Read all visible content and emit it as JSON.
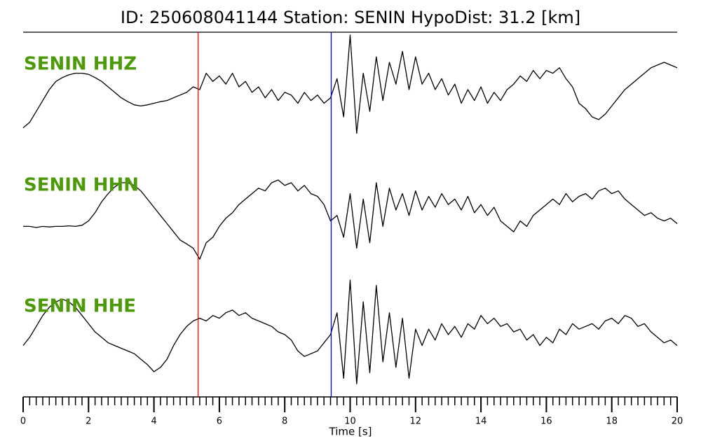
{
  "chart_data": {
    "type": "line",
    "title": "ID: 250608041144   Station: SENIN   HypoDist:    31.2 [km]",
    "x_label": "Time [s]",
    "xlim": [
      0,
      20
    ],
    "ylim": [
      -1,
      1
    ],
    "xticks": [
      0,
      2,
      4,
      6,
      8,
      10,
      12,
      14,
      16,
      18,
      20
    ],
    "xminorticks": [
      0,
      0.2,
      0.4,
      0.6,
      0.8,
      1,
      1.2,
      1.4,
      1.6,
      1.8,
      2,
      2.2,
      2.4,
      2.6,
      2.8,
      3,
      3.2,
      3.4,
      3.6,
      3.8,
      4,
      4.2,
      4.4,
      4.6,
      4.8,
      5,
      5.2,
      5.4,
      5.6,
      5.8,
      6,
      6.2,
      6.4,
      6.6,
      6.8,
      7,
      7.2,
      7.4,
      7.6,
      7.8,
      8,
      8.2,
      8.4,
      8.6,
      8.8,
      9,
      9.2,
      9.4,
      9.6,
      9.8,
      10,
      10.2,
      10.4,
      10.6,
      10.8,
      11,
      11.2,
      11.4,
      11.6,
      11.8,
      12,
      12.2,
      12.4,
      12.6,
      12.8,
      13,
      13.2,
      13.4,
      13.6,
      13.8,
      14,
      14.2,
      14.4,
      14.6,
      14.8,
      15,
      15.2,
      15.4,
      15.6,
      15.8,
      16,
      16.2,
      16.4,
      16.6,
      16.8,
      17,
      17.2,
      17.4,
      17.6,
      17.8,
      18,
      18.2,
      18.4,
      18.6,
      18.8,
      19,
      19.2,
      19.4,
      19.6,
      19.8,
      20
    ],
    "x": [
      0,
      0.2,
      0.4,
      0.6,
      0.8,
      1,
      1.2,
      1.4,
      1.6,
      1.8,
      2,
      2.2,
      2.4,
      2.6,
      2.8,
      3,
      3.2,
      3.4,
      3.6,
      3.8,
      4,
      4.2,
      4.4,
      4.6,
      4.8,
      5,
      5.2,
      5.4,
      5.6,
      5.8,
      6,
      6.2,
      6.4,
      6.6,
      6.8,
      7,
      7.2,
      7.4,
      7.6,
      7.8,
      8,
      8.2,
      8.4,
      8.6,
      8.8,
      9,
      9.2,
      9.4,
      9.6,
      9.8,
      10,
      10.2,
      10.4,
      10.6,
      10.8,
      11,
      11.2,
      11.4,
      11.6,
      11.8,
      12,
      12.2,
      12.4,
      12.6,
      12.8,
      13,
      13.2,
      13.4,
      13.6,
      13.8,
      14,
      14.2,
      14.4,
      14.6,
      14.8,
      15,
      15.2,
      15.4,
      15.6,
      15.8,
      16,
      16.2,
      16.4,
      16.6,
      16.8,
      17,
      17.2,
      17.4,
      17.6,
      17.8,
      18,
      18.2,
      18.4,
      18.6,
      18.8,
      19,
      19.2,
      19.4,
      19.6,
      19.8,
      20
    ],
    "series": [
      {
        "name": "SENIN HHZ",
        "color": "#000000",
        "values": [
          -0.7,
          -0.6,
          -0.4,
          -0.2,
          0,
          0.15,
          0.22,
          0.27,
          0.3,
          0.3,
          0.28,
          0.22,
          0.15,
          0.05,
          -0.05,
          -0.15,
          -0.22,
          -0.28,
          -0.3,
          -0.28,
          -0.25,
          -0.22,
          -0.2,
          -0.15,
          -0.1,
          -0.05,
          0.05,
          0,
          0.3,
          0.15,
          0.25,
          0.1,
          0.3,
          0.05,
          0.15,
          -0.05,
          0.05,
          -0.15,
          0,
          -0.2,
          -0.05,
          -0.1,
          -0.25,
          -0.05,
          -0.2,
          -0.1,
          -0.25,
          -0.15,
          0.2,
          -0.5,
          1,
          -0.8,
          0.3,
          -0.4,
          0.6,
          -0.2,
          0.5,
          0.1,
          0.7,
          0,
          0.6,
          0.1,
          0.3,
          0,
          0.2,
          -0.1,
          0.1,
          -0.25,
          0,
          -0.2,
          0.05,
          -0.25,
          -0.05,
          -0.2,
          0,
          0.1,
          0.25,
          0.15,
          0.35,
          0.2,
          0.35,
          0.3,
          0.4,
          0.2,
          0.05,
          -0.25,
          -0.35,
          -0.5,
          -0.55,
          -0.45,
          -0.3,
          -0.15,
          0,
          0.1,
          0.2,
          0.3,
          0.4,
          0.45,
          0.5,
          0.45,
          0.4
        ]
      },
      {
        "name": "SENIN HHN",
        "color": "#000000",
        "values": [
          -0.3,
          -0.3,
          -0.32,
          -0.3,
          -0.31,
          -0.3,
          -0.3,
          -0.29,
          -0.3,
          -0.28,
          -0.2,
          -0.05,
          0.15,
          0.3,
          0.42,
          0.5,
          0.5,
          0.45,
          0.35,
          0.2,
          0.05,
          -0.1,
          -0.25,
          -0.4,
          -0.55,
          -0.62,
          -0.7,
          -0.9,
          -0.6,
          -0.5,
          -0.3,
          -0.15,
          -0.05,
          0.1,
          0.2,
          0.3,
          0.4,
          0.35,
          0.5,
          0.55,
          0.45,
          0.5,
          0.35,
          0.45,
          0.3,
          0.25,
          0.1,
          -0.2,
          -0.1,
          -0.5,
          0.3,
          -0.7,
          0.2,
          -0.6,
          0.5,
          -0.3,
          0.4,
          0,
          0.3,
          -0.1,
          0.35,
          0,
          0.25,
          0.05,
          0.3,
          0.1,
          0.2,
          0,
          0.25,
          -0.05,
          0.1,
          -0.1,
          0.05,
          -0.2,
          -0.3,
          -0.4,
          -0.2,
          -0.3,
          -0.1,
          0,
          0.1,
          0.2,
          0.1,
          0.3,
          0.15,
          0.25,
          0.3,
          0.2,
          0.35,
          0.4,
          0.3,
          0.35,
          0.2,
          0.1,
          0,
          -0.1,
          -0.05,
          -0.15,
          -0.2,
          -0.15,
          -0.25
        ]
      },
      {
        "name": "SENIN HHE",
        "color": "#000000",
        "values": [
          -0.2,
          -0.05,
          0.15,
          0.35,
          0.5,
          0.6,
          0.65,
          0.6,
          0.5,
          0.35,
          0.2,
          0.05,
          -0.05,
          -0.15,
          -0.2,
          -0.25,
          -0.3,
          -0.35,
          -0.45,
          -0.55,
          -0.68,
          -0.6,
          -0.45,
          -0.2,
          0,
          0.15,
          0.25,
          0.3,
          0.25,
          0.35,
          0.3,
          0.4,
          0.45,
          0.35,
          0.4,
          0.3,
          0.25,
          0.2,
          0.15,
          0.05,
          0,
          -0.1,
          -0.3,
          -0.4,
          -0.35,
          -0.3,
          -0.15,
          0,
          0.4,
          -0.8,
          1,
          -0.9,
          0.6,
          -0.7,
          0.9,
          -0.5,
          0.4,
          -0.6,
          0.3,
          -0.8,
          0.1,
          -0.2,
          0.1,
          -0.1,
          0.2,
          0,
          0.15,
          -0.05,
          0.2,
          0.1,
          0.35,
          0.2,
          0.3,
          0.15,
          0.2,
          0.05,
          0.1,
          -0.1,
          0,
          -0.2,
          -0.05,
          -0.15,
          0.1,
          0,
          0.2,
          0.1,
          0.15,
          0.2,
          0.1,
          0.25,
          0.3,
          0.2,
          0.35,
          0.3,
          0.15,
          0.2,
          0.05,
          -0.05,
          -0.15,
          -0.1,
          -0.2
        ]
      }
    ],
    "markers": [
      {
        "x": 5.35,
        "color": "#ff0000"
      },
      {
        "x": 9.42,
        "color": "#0000ff"
      }
    ]
  }
}
